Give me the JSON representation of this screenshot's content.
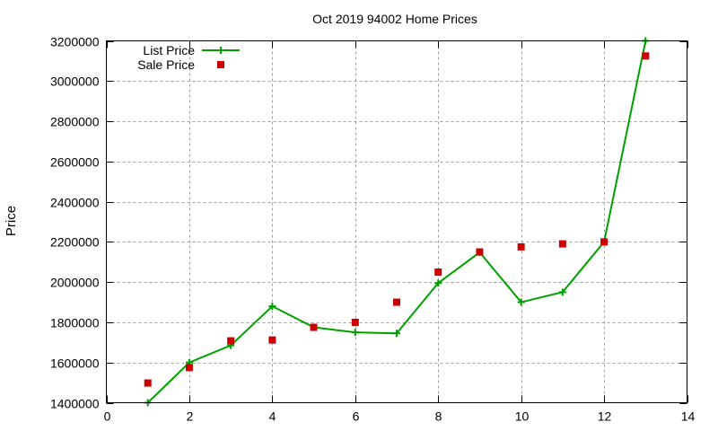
{
  "chart_data": {
    "type": "line",
    "title": "Oct 2019 94002 Home Prices",
    "xlabel": "",
    "ylabel": "Price",
    "xlim": [
      0,
      14
    ],
    "ylim": [
      1400000,
      3200000
    ],
    "x_ticks": [
      0,
      2,
      4,
      6,
      8,
      10,
      12,
      14
    ],
    "y_ticks": [
      1400000,
      1600000,
      1800000,
      2000000,
      2200000,
      2400000,
      2600000,
      2800000,
      3000000,
      3200000
    ],
    "grid": true,
    "legend_position": "top-left",
    "x": [
      1,
      2,
      3,
      4,
      5,
      6,
      7,
      8,
      9,
      10,
      11,
      12,
      13
    ],
    "series": [
      {
        "name": "List Price",
        "style": "linespoints",
        "marker": "plus",
        "color": "#00a000",
        "values": [
          1400000,
          1600000,
          1685000,
          1880000,
          1775000,
          1750000,
          1745000,
          1995000,
          2148000,
          1900000,
          1950000,
          2200000,
          3200000
        ]
      },
      {
        "name": "Sale Price",
        "style": "points",
        "marker": "square",
        "color": "#cc0000",
        "values": [
          1498000,
          1575000,
          1708000,
          1712000,
          1775000,
          1800000,
          1900000,
          2050000,
          2150000,
          2175000,
          2190000,
          2200000,
          3125000
        ]
      }
    ]
  }
}
